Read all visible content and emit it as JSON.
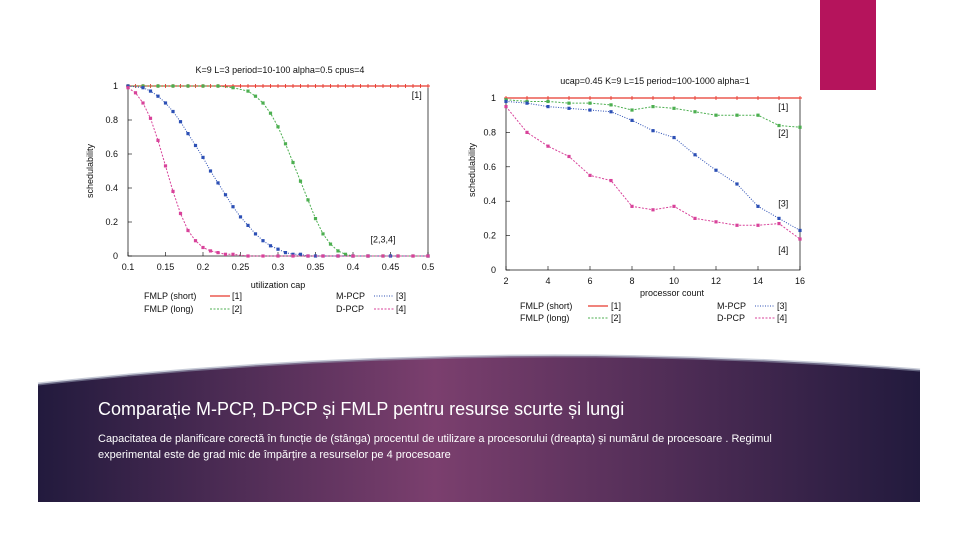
{
  "slide": {
    "title": "Comparație M-PCP, D-PCP și FMLP pentru resurse scurte și lungi",
    "subtitle": "Capacitatea de planificare corectă în funcție de (stânga) procentul de utilizare a procesorului (dreapta) și numărul de procesoare . Regimul experimental este de grad mic de împărțire a resurselor pe 4 procesoare"
  },
  "colors": {
    "accent": "#b5145c",
    "banner_dark": "#221a3d",
    "banner_light": "#7b3f6e",
    "series": [
      "#e8392f",
      "#4caf50",
      "#2c4fb5",
      "#d8429a"
    ]
  },
  "chart_data": [
    {
      "type": "line",
      "title": "K=9 L=3 period=10-100 alpha=0.5 cpus=4",
      "xlabel": "utilization cap",
      "ylabel": "schedulability",
      "xlim": [
        0.1,
        0.5
      ],
      "ylim": [
        0,
        1
      ],
      "xticks": [
        "0.1",
        "0.15",
        "0.2",
        "0.25",
        "0.3",
        "0.35",
        "0.4",
        "0.45",
        "0.5"
      ],
      "yticks": [
        "0",
        "0.2",
        "0.4",
        "0.6",
        "0.8",
        "1"
      ],
      "annotations": [
        {
          "text": "[1]",
          "x": 0.485,
          "y": 0.93
        },
        {
          "text": "[2,3,4]",
          "x": 0.44,
          "y": 0.08
        }
      ],
      "legend": [
        "FMLP (short)",
        "[1]",
        "FMLP (long)",
        "[2]",
        "M-PCP",
        "[3]",
        "D-PCP",
        "[4]"
      ],
      "series": [
        {
          "name": "FMLP (short)",
          "tag": "[1]",
          "x": [
            0.1,
            0.11,
            0.12,
            0.13,
            0.14,
            0.15,
            0.16,
            0.17,
            0.18,
            0.19,
            0.2,
            0.21,
            0.22,
            0.23,
            0.24,
            0.25,
            0.26,
            0.27,
            0.28,
            0.29,
            0.3,
            0.31,
            0.32,
            0.33,
            0.34,
            0.35,
            0.36,
            0.37,
            0.38,
            0.39,
            0.4,
            0.41,
            0.42,
            0.43,
            0.44,
            0.45,
            0.46,
            0.47,
            0.48,
            0.49,
            0.5
          ],
          "y": [
            1,
            1,
            1,
            1,
            1,
            1,
            1,
            1,
            1,
            1,
            1,
            1,
            1,
            1,
            1,
            1,
            1,
            1,
            1,
            1,
            1,
            1,
            1,
            1,
            1,
            1,
            1,
            1,
            1,
            1,
            1,
            1,
            1,
            1,
            1,
            1,
            1,
            1,
            1,
            1,
            1
          ]
        },
        {
          "name": "FMLP (long)",
          "tag": "[2]",
          "x": [
            0.1,
            0.12,
            0.14,
            0.16,
            0.18,
            0.2,
            0.22,
            0.24,
            0.26,
            0.27,
            0.28,
            0.29,
            0.3,
            0.31,
            0.32,
            0.33,
            0.34,
            0.35,
            0.36,
            0.37,
            0.38,
            0.39,
            0.4,
            0.42,
            0.44,
            0.46,
            0.48,
            0.5
          ],
          "y": [
            1,
            1,
            1,
            1,
            1,
            1,
            1,
            0.99,
            0.97,
            0.94,
            0.9,
            0.84,
            0.76,
            0.66,
            0.55,
            0.44,
            0.33,
            0.22,
            0.13,
            0.07,
            0.03,
            0.01,
            0,
            0,
            0,
            0,
            0,
            0
          ]
        },
        {
          "name": "M-PCP",
          "tag": "[3]",
          "x": [
            0.1,
            0.12,
            0.13,
            0.14,
            0.15,
            0.16,
            0.17,
            0.18,
            0.19,
            0.2,
            0.21,
            0.22,
            0.23,
            0.24,
            0.25,
            0.26,
            0.27,
            0.28,
            0.29,
            0.3,
            0.31,
            0.32,
            0.33,
            0.34,
            0.35,
            0.36,
            0.38,
            0.4,
            0.42,
            0.45,
            0.5
          ],
          "y": [
            1,
            0.99,
            0.97,
            0.94,
            0.9,
            0.85,
            0.79,
            0.72,
            0.65,
            0.58,
            0.5,
            0.43,
            0.36,
            0.29,
            0.23,
            0.18,
            0.13,
            0.09,
            0.06,
            0.04,
            0.02,
            0.01,
            0.01,
            0,
            0,
            0,
            0,
            0,
            0,
            0,
            0
          ]
        },
        {
          "name": "D-PCP",
          "tag": "[4]",
          "x": [
            0.1,
            0.11,
            0.12,
            0.13,
            0.14,
            0.15,
            0.16,
            0.17,
            0.18,
            0.19,
            0.2,
            0.21,
            0.22,
            0.23,
            0.24,
            0.26,
            0.28,
            0.3,
            0.32,
            0.34,
            0.36,
            0.38,
            0.4,
            0.42,
            0.44,
            0.46,
            0.48,
            0.5
          ],
          "y": [
            0.99,
            0.96,
            0.9,
            0.81,
            0.68,
            0.53,
            0.38,
            0.25,
            0.15,
            0.09,
            0.05,
            0.03,
            0.02,
            0.01,
            0.01,
            0,
            0,
            0,
            0,
            0,
            0,
            0,
            0,
            0,
            0,
            0,
            0,
            0
          ]
        }
      ]
    },
    {
      "type": "line",
      "title": "ucap=0.45 K=9 L=15 period=100-1000 alpha=1",
      "xlabel": "processor count",
      "ylabel": "schedulability",
      "xlim": [
        2,
        16
      ],
      "ylim": [
        0,
        1
      ],
      "xticks": [
        "2",
        "4",
        "6",
        "8",
        "10",
        "12",
        "14",
        "16"
      ],
      "yticks": [
        "0",
        "0.2",
        "0.4",
        "0.6",
        "0.8",
        "1"
      ],
      "annotations": [
        {
          "text": "[1]",
          "x": 15.2,
          "y": 0.93
        },
        {
          "text": "[2]",
          "x": 15.2,
          "y": 0.78
        },
        {
          "text": "[3]",
          "x": 15.2,
          "y": 0.37
        },
        {
          "text": "[4]",
          "x": 15.2,
          "y": 0.1
        }
      ],
      "legend": [
        "FMLP (short)",
        "[1]",
        "FMLP (long)",
        "[2]",
        "M-PCP",
        "[3]",
        "D-PCP",
        "[4]"
      ],
      "series": [
        {
          "name": "FMLP (short)",
          "tag": "[1]",
          "x": [
            2,
            3,
            4,
            5,
            6,
            7,
            8,
            9,
            10,
            11,
            12,
            13,
            14,
            15,
            16
          ],
          "y": [
            1,
            1,
            1,
            1,
            1,
            1,
            1,
            1,
            1,
            1,
            1,
            1,
            1,
            1,
            1
          ]
        },
        {
          "name": "FMLP (long)",
          "tag": "[2]",
          "x": [
            2,
            3,
            4,
            5,
            6,
            7,
            8,
            9,
            10,
            11,
            12,
            13,
            14,
            15,
            16
          ],
          "y": [
            0.99,
            0.98,
            0.98,
            0.97,
            0.97,
            0.96,
            0.93,
            0.95,
            0.94,
            0.92,
            0.9,
            0.9,
            0.9,
            0.84,
            0.83
          ]
        },
        {
          "name": "M-PCP",
          "tag": "[3]",
          "x": [
            2,
            3,
            4,
            5,
            6,
            7,
            8,
            9,
            10,
            11,
            12,
            13,
            14,
            15,
            16
          ],
          "y": [
            0.98,
            0.97,
            0.95,
            0.94,
            0.93,
            0.92,
            0.87,
            0.81,
            0.77,
            0.67,
            0.58,
            0.5,
            0.37,
            0.3,
            0.23
          ]
        },
        {
          "name": "D-PCP",
          "tag": "[4]",
          "x": [
            2,
            3,
            4,
            5,
            6,
            7,
            8,
            9,
            10,
            11,
            12,
            13,
            14,
            15,
            16
          ],
          "y": [
            0.95,
            0.8,
            0.72,
            0.66,
            0.55,
            0.52,
            0.37,
            0.35,
            0.37,
            0.3,
            0.28,
            0.26,
            0.26,
            0.27,
            0.18
          ]
        }
      ]
    }
  ]
}
